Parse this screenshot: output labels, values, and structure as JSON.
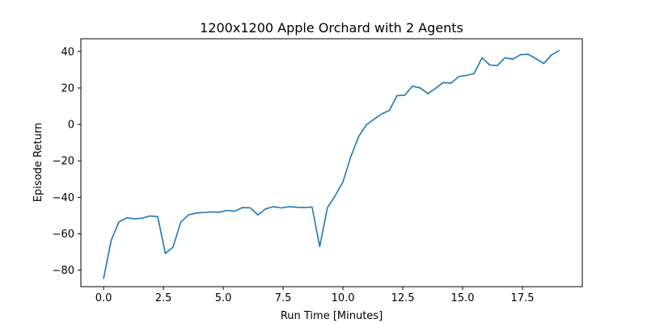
{
  "chart_data": {
    "type": "line",
    "title": "1200x1200 Apple Orchard with 2 Agents",
    "xlabel": "Run Time [Minutes]",
    "ylabel": "Episode Return",
    "xlim": [
      -0.95,
      20.0
    ],
    "ylim": [
      -89.0,
      47.0
    ],
    "xticks": [
      0.0,
      2.5,
      5.0,
      7.5,
      10.0,
      12.5,
      15.0,
      17.5
    ],
    "xtick_labels": [
      "0.0",
      "2.5",
      "5.0",
      "7.5",
      "10.0",
      "12.5",
      "15.0",
      "17.5"
    ],
    "yticks": [
      -80,
      -60,
      -40,
      -20,
      0,
      20,
      40
    ],
    "ytick_labels": [
      "−80",
      "−60",
      "−40",
      "−20",
      "0",
      "20",
      "40"
    ],
    "grid": false,
    "legend": null,
    "series": [
      {
        "color": "#1f77b4",
        "x": [
          0.0,
          0.32,
          0.64,
          0.97,
          1.29,
          1.61,
          1.94,
          2.26,
          2.58,
          2.9,
          3.22,
          3.55,
          3.87,
          4.19,
          4.52,
          4.84,
          5.16,
          5.48,
          5.8,
          6.13,
          6.45,
          6.77,
          7.1,
          7.42,
          7.74,
          8.06,
          8.39,
          8.71,
          9.03,
          9.35,
          9.68,
          10.0,
          10.32,
          10.65,
          10.97,
          11.29,
          11.61,
          11.94,
          12.26,
          12.58,
          12.9,
          13.23,
          13.55,
          13.87,
          14.19,
          14.52,
          14.84,
          15.16,
          15.48,
          15.81,
          16.13,
          16.45,
          16.77,
          17.1,
          17.42,
          17.74,
          18.06,
          18.39,
          18.71,
          19.03
        ],
        "y": [
          -84.5,
          -63.5,
          -53.5,
          -51.2,
          -51.8,
          -51.4,
          -50.2,
          -50.6,
          -70.8,
          -67.3,
          -53.7,
          -49.6,
          -48.6,
          -48.3,
          -48.0,
          -48.1,
          -47.2,
          -47.6,
          -45.6,
          -45.8,
          -49.7,
          -46.3,
          -45.1,
          -45.8,
          -45.1,
          -45.4,
          -45.6,
          -45.3,
          -67.0,
          -45.7,
          -39.0,
          -31.5,
          -18.0,
          -6.8,
          -0.3,
          2.8,
          5.7,
          7.7,
          15.8,
          16.0,
          21.0,
          20.0,
          16.9,
          19.8,
          23.0,
          22.6,
          26.3,
          26.9,
          27.9,
          36.6,
          32.6,
          32.3,
          36.6,
          35.8,
          38.3,
          38.5,
          36.1,
          33.4,
          38.1,
          40.5
        ]
      }
    ]
  }
}
